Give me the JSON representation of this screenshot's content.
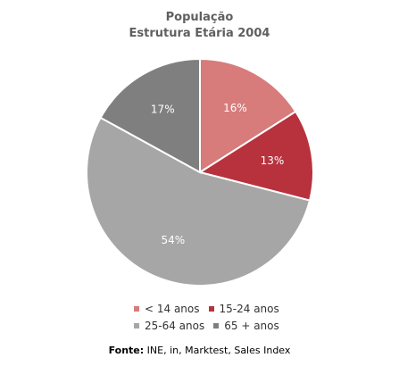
{
  "chart_data": {
    "type": "pie",
    "title": "População",
    "subtitle": "Estrutura Etária 2004",
    "categories": [
      "< 14 anos",
      "15-24 anos",
      "25-64 anos",
      "65 + anos"
    ],
    "values": [
      16,
      13,
      54,
      17
    ],
    "value_labels": [
      "16%",
      "13%",
      "54%",
      "17%"
    ],
    "colors": [
      "#d77b7b",
      "#b8323e",
      "#a6a6a6",
      "#7f7f7f"
    ],
    "legend_position": "bottom"
  },
  "source": {
    "label": "Fonte:",
    "text": "INE, in, Marktest, Sales Index"
  }
}
